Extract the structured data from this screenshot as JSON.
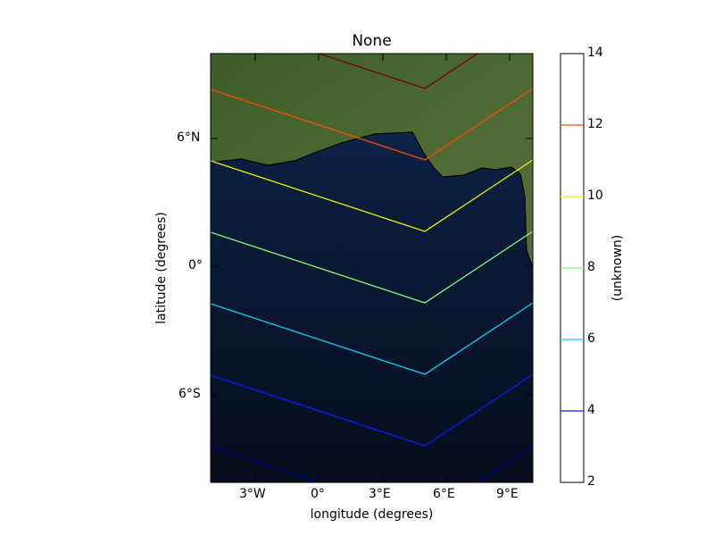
{
  "title": "None",
  "xlabel": "longitude (degrees)",
  "ylabel": "latitude (degrees)",
  "colorbar": {
    "label": "(unknown)",
    "min": 2,
    "max": 14,
    "ticks": [
      "14",
      "12",
      "10",
      "8",
      "6",
      "4",
      "2"
    ]
  },
  "x_ticks": [
    "3°W",
    "0°",
    "3°E",
    "6°E",
    "9°E"
  ],
  "y_ticks": [
    "6°N",
    "0°",
    "6°S"
  ],
  "colors": {
    "ocean": "#0a1326",
    "land": "#3f5e2a",
    "coastline": "#000000"
  },
  "chart_data": {
    "type": "contour",
    "map_extent": {
      "lon": [
        -5,
        10
      ],
      "lat": [
        -10,
        10
      ]
    },
    "levels": [
      {
        "value": 14,
        "color": "#800000"
      },
      {
        "value": 12,
        "color": "#ff4a00"
      },
      {
        "value": 10,
        "color": "#f0f000"
      },
      {
        "value": 8,
        "color": "#7dff7a"
      },
      {
        "value": 6,
        "color": "#00d4ff"
      },
      {
        "value": 4,
        "color": "#0020ff"
      },
      {
        "value": 2,
        "color": "#00008f"
      }
    ]
  }
}
